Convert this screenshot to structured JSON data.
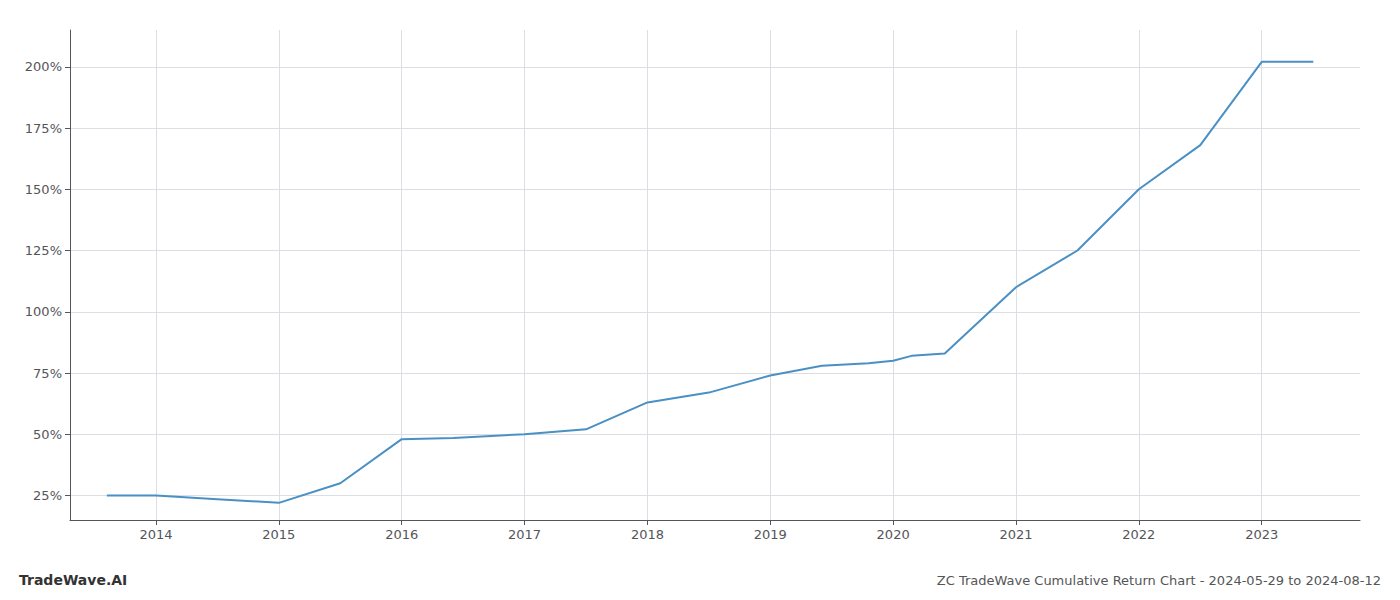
{
  "chart_data": {
    "type": "line",
    "title": "ZC TradeWave Cumulative Return Chart - 2024-05-29 to 2024-08-12",
    "annotations": [
      "TradeWave.AI"
    ],
    "x": [
      2013.6,
      2014.0,
      2014.5,
      2015.0,
      2015.5,
      2016.0,
      2016.42,
      2017.0,
      2017.5,
      2018.0,
      2018.5,
      2019.0,
      2019.42,
      2019.8,
      2020.0,
      2020.15,
      2020.42,
      2021.0,
      2021.5,
      2022.0,
      2022.5,
      2023.0,
      2023.42
    ],
    "values": [
      25,
      25,
      23.5,
      22,
      30,
      48,
      48.5,
      50,
      52,
      63,
      67,
      74,
      78,
      79,
      80,
      82,
      83,
      110,
      125,
      150,
      168,
      202,
      202
    ],
    "color": "#4a90c4",
    "xlim": [
      2013.3,
      2023.8
    ],
    "xticks": [
      2014,
      2015,
      2016,
      2017,
      2018,
      2019,
      2020,
      2021,
      2022,
      2023
    ],
    "ylim": [
      15,
      215
    ],
    "yticks": [
      {
        "value": 25,
        "label": "25%"
      },
      {
        "value": 50,
        "label": "50%"
      },
      {
        "value": 75,
        "label": "75%"
      },
      {
        "value": 100,
        "label": "100%"
      },
      {
        "value": 125,
        "label": "125%"
      },
      {
        "value": 150,
        "label": "150%"
      },
      {
        "value": 175,
        "label": "175%"
      },
      {
        "value": 200,
        "label": "200%"
      }
    ],
    "grid": true
  }
}
